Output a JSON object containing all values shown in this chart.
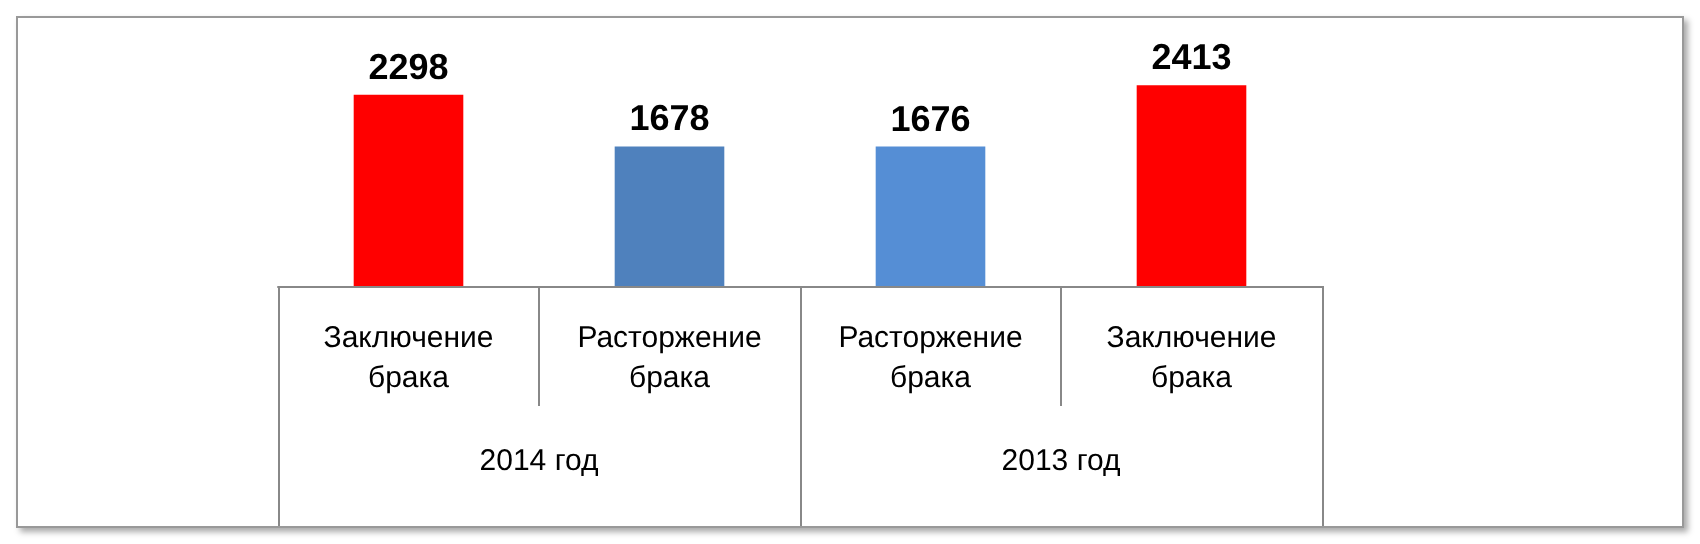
{
  "chart_data": {
    "type": "bar",
    "categories": [
      "Заключение брака",
      "Расторжение брака",
      "Расторжение брака",
      "Заключение брака"
    ],
    "values": [
      2298,
      1678,
      1676,
      2413
    ],
    "colors": [
      "#ff0000",
      "#4f81bd",
      "#558ed5",
      "#ff0000"
    ],
    "data_labels": true,
    "annotations": [
      "2014 год",
      "2013 год"
    ],
    "grid": false
  }
}
